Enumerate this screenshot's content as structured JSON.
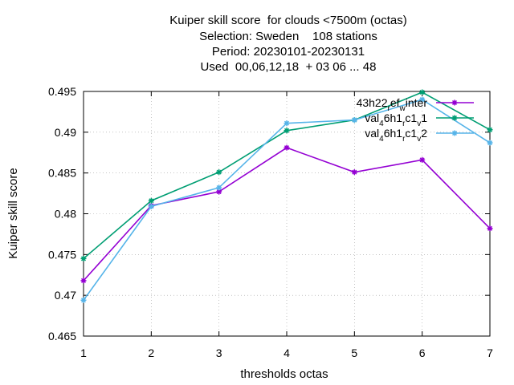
{
  "chart_data": {
    "type": "line",
    "title_lines": [
      "Kuiper skill score  for clouds <7500m (octas)",
      "Selection: Sweden    108 stations",
      "Period: 20230101-20230131",
      "Used  00,06,12,18  + 03 06 ... 48"
    ],
    "xlabel": "thresholds octas",
    "ylabel": "Kuiper skill score",
    "x": [
      1,
      2,
      3,
      4,
      5,
      6,
      7
    ],
    "xlim": [
      1,
      7
    ],
    "ylim": [
      0.465,
      0.495
    ],
    "xticks": [
      "1",
      "2",
      "3",
      "4",
      "5",
      "6",
      "7"
    ],
    "yticks": [
      "0.465",
      "0.47",
      "0.475",
      "0.48",
      "0.485",
      "0.49",
      "0.495"
    ],
    "ytick_values": [
      0.465,
      0.47,
      0.475,
      0.48,
      0.485,
      0.49,
      0.495
    ],
    "grid": true,
    "legend_position": "top-right",
    "series": [
      {
        "name": "43h22_ref_winter",
        "legend_base": "43h22",
        "legend_sub1": "r",
        "legend_mid": "ef",
        "legend_sub2": "w",
        "legend_end": "inter",
        "color": "#9400d3",
        "values": [
          0.4718,
          0.481,
          0.4827,
          0.4881,
          0.4851,
          0.4866,
          0.4782
        ]
      },
      {
        "name": "val_46h1_rc1_v1",
        "legend_base": "val",
        "legend_sub1": "4",
        "legend_mid": "6h1",
        "legend_sub2": "r",
        "legend_mid2": "c1",
        "legend_sub3": "v",
        "legend_end": "1",
        "color": "#009e73",
        "values": [
          0.4745,
          0.4816,
          0.4851,
          0.4902,
          0.4915,
          0.4949,
          0.4903
        ]
      },
      {
        "name": "val_46h1_rc1_v2",
        "legend_base": "val",
        "legend_sub1": "4",
        "legend_mid": "6h1",
        "legend_sub2": "r",
        "legend_mid2": "c1",
        "legend_sub3": "v",
        "legend_end": "2",
        "color": "#56b4e9",
        "values": [
          0.4694,
          0.4809,
          0.4832,
          0.4911,
          0.4915,
          0.494,
          0.4887
        ]
      }
    ]
  }
}
